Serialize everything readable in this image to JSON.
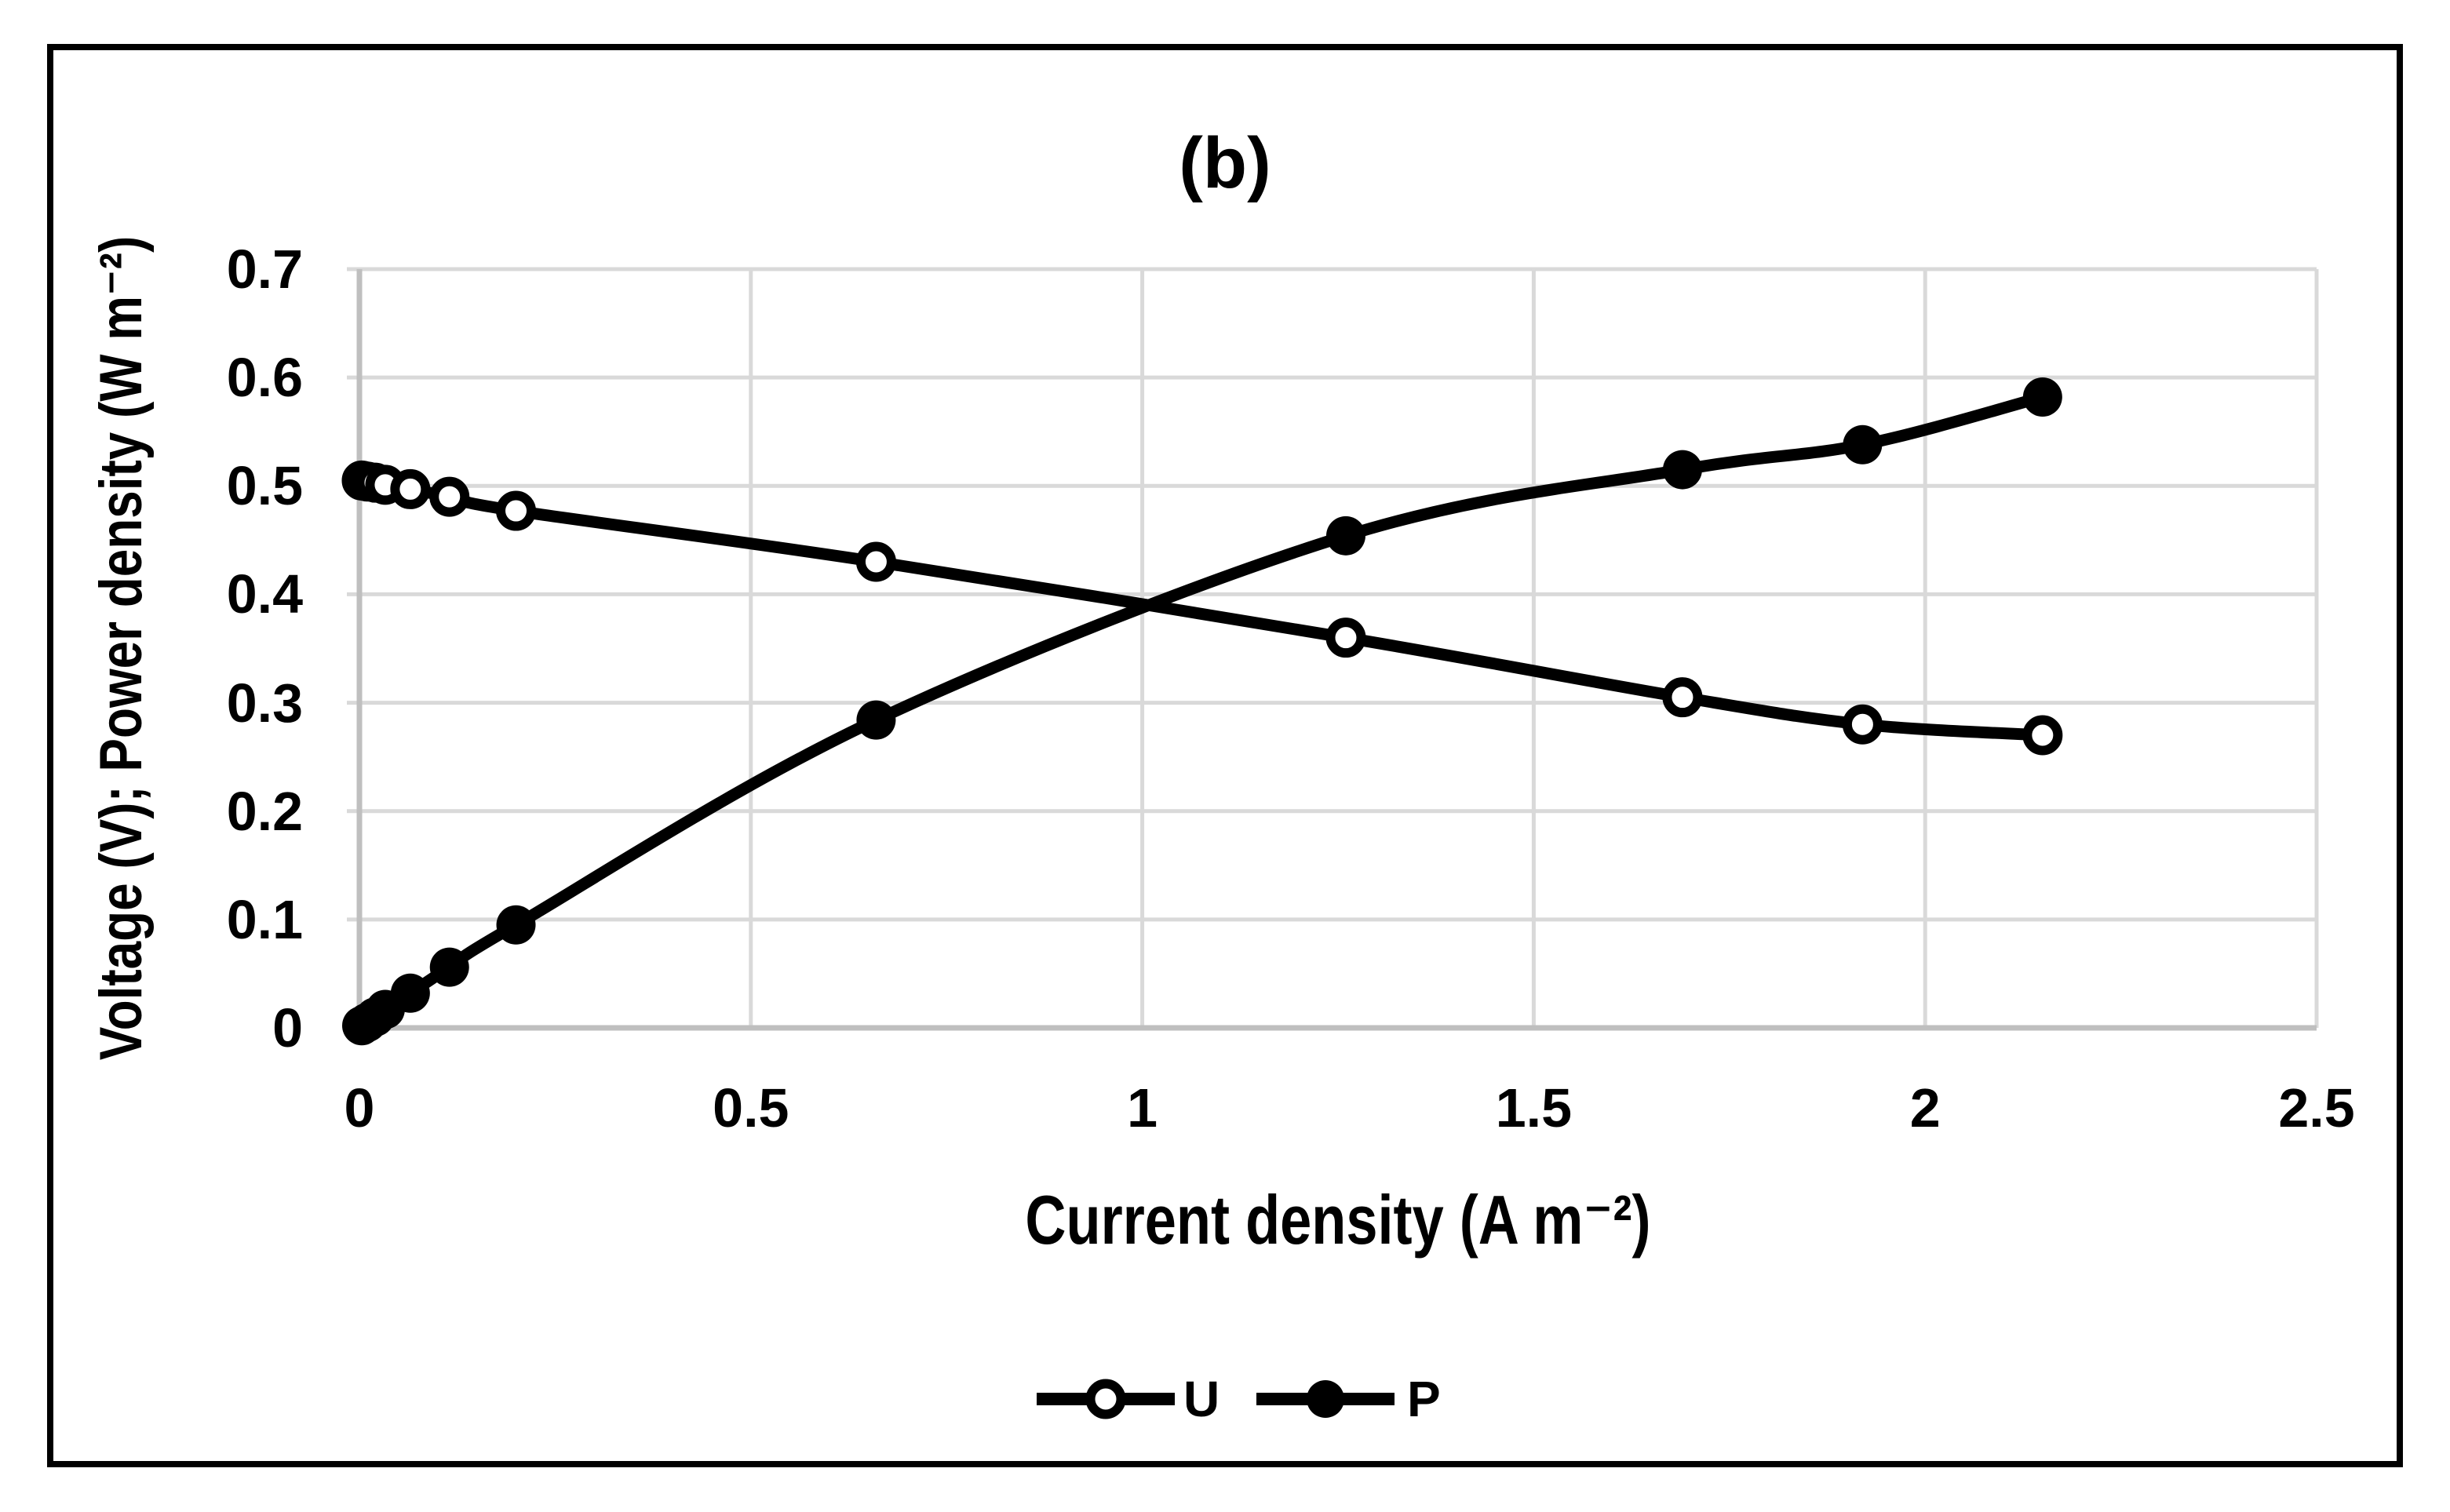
{
  "figure": {
    "background": "#ffffff",
    "border_color": "#000000"
  },
  "chart_data": {
    "type": "line",
    "title": "(b)",
    "xlabel": "Current density (A m⁻²)",
    "ylabel": "Voltage (V); Power density (W m⁻²)",
    "xlim": [
      0,
      2.5
    ],
    "ylim": [
      0,
      0.7
    ],
    "grid": true,
    "gridline_color": "#d9d9d9",
    "axis_line_color": "#bfbfbf",
    "series_color": "#000000",
    "legend_position": "bottom-center",
    "x_ticks": [
      {
        "value": 0,
        "label": "0"
      },
      {
        "value": 0.5,
        "label": "0.5"
      },
      {
        "value": 1,
        "label": "1"
      },
      {
        "value": 1.5,
        "label": "1.5"
      },
      {
        "value": 2,
        "label": "2"
      },
      {
        "value": 2.5,
        "label": "2.5"
      }
    ],
    "y_ticks": [
      {
        "value": 0,
        "label": "0"
      },
      {
        "value": 0.1,
        "label": "0.1"
      },
      {
        "value": 0.2,
        "label": "0.2"
      },
      {
        "value": 0.3,
        "label": "0.3"
      },
      {
        "value": 0.4,
        "label": "0.4"
      },
      {
        "value": 0.5,
        "label": "0.5"
      },
      {
        "value": 0.6,
        "label": "0.6"
      },
      {
        "value": 0.7,
        "label": "0.7"
      }
    ],
    "series": [
      {
        "name": "U",
        "marker": "open-circle",
        "color": "#000000",
        "x": [
          0.003,
          0.01,
          0.02,
          0.033,
          0.065,
          0.115,
          0.2,
          0.66,
          1.26,
          1.69,
          1.92,
          2.15
        ],
        "y": [
          0.505,
          0.504,
          0.503,
          0.501,
          0.497,
          0.49,
          0.477,
          0.43,
          0.36,
          0.305,
          0.28,
          0.27
        ]
      },
      {
        "name": "P",
        "marker": "filled-circle",
        "color": "#000000",
        "x": [
          0.003,
          0.01,
          0.02,
          0.033,
          0.065,
          0.115,
          0.2,
          0.66,
          1.26,
          1.69,
          1.92,
          2.15
        ],
        "y": [
          0.002,
          0.005,
          0.01,
          0.017,
          0.032,
          0.056,
          0.095,
          0.284,
          0.454,
          0.515,
          0.538,
          0.582
        ]
      }
    ]
  }
}
